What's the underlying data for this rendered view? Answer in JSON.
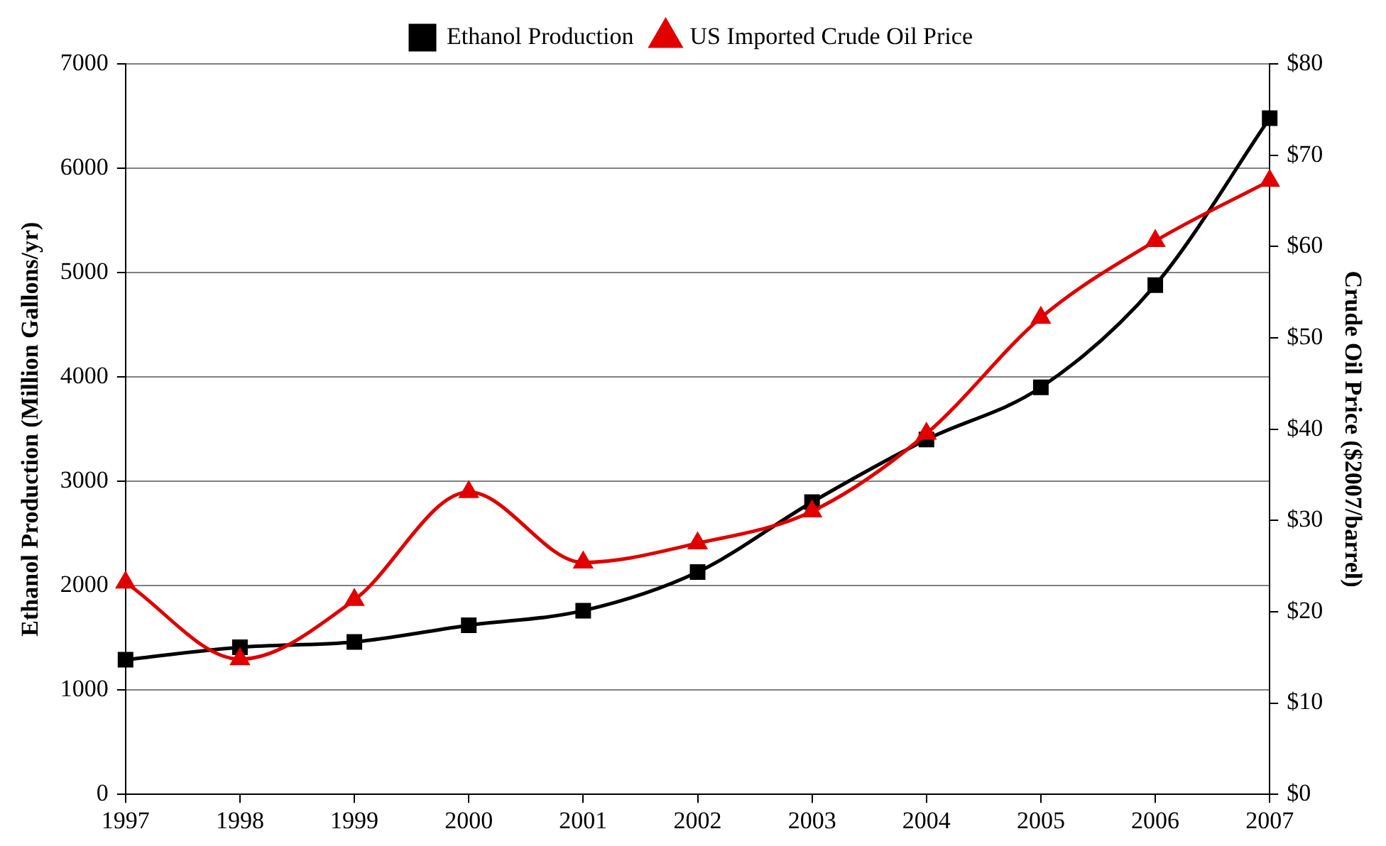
{
  "chart_data": {
    "type": "line",
    "categories": [
      "1997",
      "1998",
      "1999",
      "2000",
      "2001",
      "2002",
      "2003",
      "2004",
      "2005",
      "2006",
      "2007"
    ],
    "ylabel": "Ethanol Production (Million Gallons/yr)",
    "y2label": "Crude Oil Price ($2007/barrel)",
    "ylim": [
      0,
      7000
    ],
    "yticks": [
      0,
      1000,
      2000,
      3000,
      4000,
      5000,
      6000,
      7000
    ],
    "y2lim": [
      0,
      80
    ],
    "y2ticks": [
      {
        "value": 0,
        "label": "$0"
      },
      {
        "value": 10,
        "label": "$10"
      },
      {
        "value": 20,
        "label": "$20"
      },
      {
        "value": 30,
        "label": "$30"
      },
      {
        "value": 40,
        "label": "$40"
      },
      {
        "value": 50,
        "label": "$50"
      },
      {
        "value": 60,
        "label": "$60"
      },
      {
        "value": 70,
        "label": "$70"
      },
      {
        "value": 80,
        "label": "$80"
      }
    ],
    "grid": "y",
    "legend": "top",
    "line_style": "solid",
    "series": [
      {
        "name": "Ethanol Production",
        "color": "#000000",
        "marker": "square",
        "values": [
          1290,
          1410,
          1460,
          1620,
          1760,
          2130,
          2800,
          3400,
          3900,
          4880,
          6480
        ]
      },
      {
        "name": "US Imported Crude Oil Price",
        "color": "#e00000",
        "marker": "triangle",
        "axis": "y2",
        "values": [
          23.2,
          14.8,
          21.3,
          33.1,
          25.4,
          27.5,
          31.0,
          39.5,
          52.2,
          60.6,
          67.2
        ]
      }
    ]
  }
}
